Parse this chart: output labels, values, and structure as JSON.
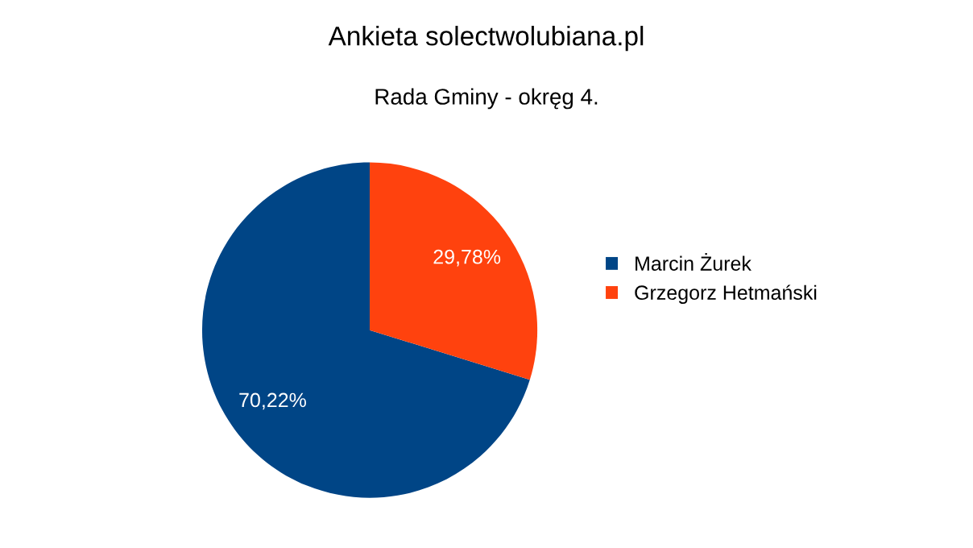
{
  "chart_data": {
    "type": "pie",
    "title": "Ankieta solectwolubiana.pl",
    "subtitle": "Rada Gminy - okręg 4.",
    "categories": [
      "Marcin Żurek",
      "Grzegorz Hetmański"
    ],
    "values": [
      70.22,
      29.78
    ],
    "value_labels": [
      "70,22%",
      "29,78%"
    ],
    "colors": [
      "#004586",
      "#ff420e"
    ],
    "legend": "right"
  }
}
